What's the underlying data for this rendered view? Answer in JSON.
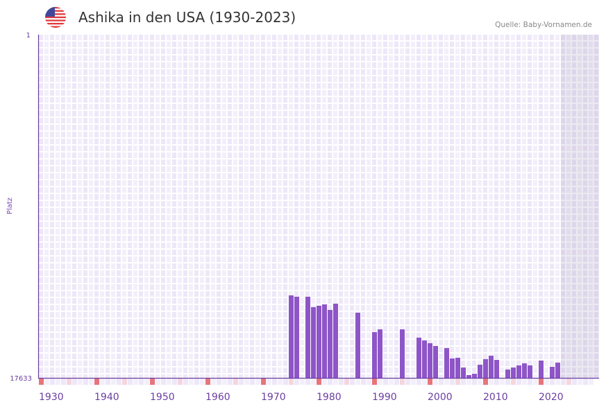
{
  "header": {
    "title": "Ashika in den USA (1930-2023)",
    "source": "Quelle: Baby-Vornamen.de",
    "flag_icon": "us-flag-icon"
  },
  "chart_data": {
    "type": "bar",
    "title": "Ashika in den USA (1930-2023)",
    "xlabel": "",
    "ylabel": "Platz",
    "ylim": [
      1,
      17633
    ],
    "y_inverted": true,
    "y_ticks": [
      "1",
      "17633"
    ],
    "x_range": [
      1930,
      2030
    ],
    "x_ticks": [
      1930,
      1940,
      1950,
      1960,
      1970,
      1980,
      1990,
      2000,
      2010,
      2020
    ],
    "future_shaded_from": 2024,
    "bar_color": "#8e55c8",
    "decade_marker_color": "#e8747c",
    "half_decade_marker_color": "#f5d6de",
    "x": [
      1975,
      1976,
      1978,
      1979,
      1980,
      1981,
      1982,
      1983,
      1987,
      1990,
      1991,
      1995,
      1998,
      1999,
      2000,
      2001,
      2003,
      2004,
      2005,
      2006,
      2007,
      2008,
      2009,
      2010,
      2011,
      2012,
      2014,
      2015,
      2016,
      2017,
      2018,
      2020,
      2022,
      2023
    ],
    "values": [
      13394,
      13465,
      13465,
      13999,
      13928,
      13857,
      14142,
      13821,
      14284,
      15281,
      15139,
      15139,
      15566,
      15710,
      15851,
      15994,
      16102,
      16636,
      16600,
      17099,
      17490,
      17419,
      16957,
      16672,
      16494,
      16708,
      17206,
      17099,
      16993,
      16886,
      16993,
      16743,
      17064,
      16850
    ]
  }
}
